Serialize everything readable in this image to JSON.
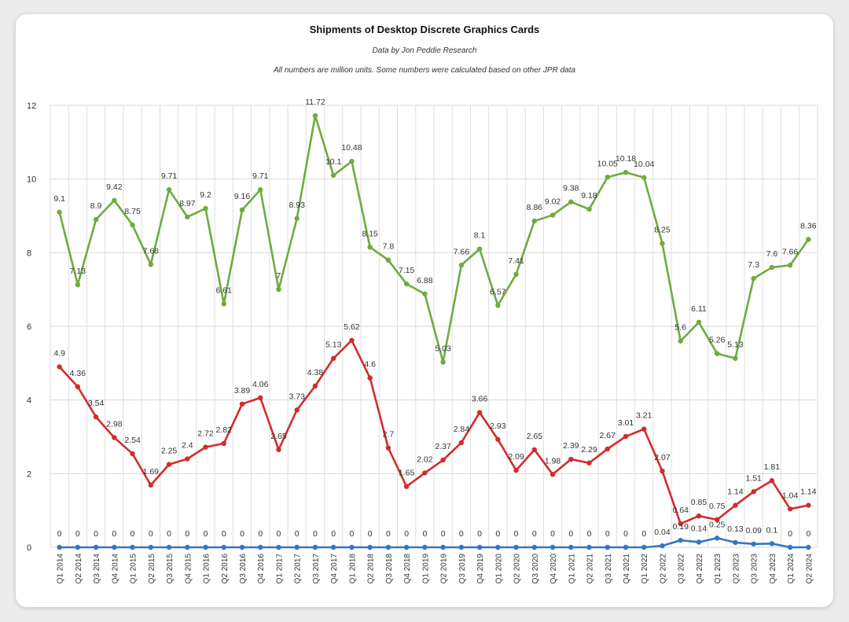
{
  "chart_data": {
    "type": "line",
    "title": "Shipments of Desktop Discrete Graphics Cards",
    "subtitle_1": "Data by Jon Peddie Research",
    "subtitle_2": "All numbers are million units. Some numbers were calculated based on other JPR data",
    "ylim": [
      0,
      12
    ],
    "yticks": [
      "0",
      "2",
      "4",
      "6",
      "8",
      "10",
      "12"
    ],
    "grid": true,
    "categories": [
      "Q1 2014",
      "Q2 2014",
      "Q3 2014",
      "Q4 2014",
      "Q1 2015",
      "Q2 2015",
      "Q3 2015",
      "Q4 2015",
      "Q1 2016",
      "Q2 2016",
      "Q3 2016",
      "Q4 2016",
      "Q1 2017",
      "Q2 2017",
      "Q3 2017",
      "Q4 2017",
      "Q1 2018",
      "Q2 2018",
      "Q3 2018",
      "Q4 2018",
      "Q1 2019",
      "Q2 2019",
      "Q3 2019",
      "Q4 2019",
      "Q1 2020",
      "Q2 2020",
      "Q3 2020",
      "Q4 2020",
      "Q1 2021",
      "Q2 2021",
      "Q3 2021",
      "Q4 2021",
      "Q1 2022",
      "Q2 2022",
      "Q3 2022",
      "Q4 2022",
      "Q1 2023",
      "Q2 2023",
      "Q3 2023",
      "Q4 2023",
      "Q1 2024",
      "Q2 2024"
    ],
    "series": [
      {
        "color": "#6fab3f",
        "values": [
          9.1,
          7.13,
          8.9,
          9.42,
          8.75,
          7.68,
          9.71,
          8.97,
          9.2,
          6.61,
          9.16,
          9.71,
          7,
          8.93,
          11.72,
          10.1,
          10.48,
          8.15,
          7.8,
          7.15,
          6.88,
          5.03,
          7.66,
          8.1,
          6.57,
          7.41,
          8.86,
          9.02,
          9.38,
          9.18,
          10.05,
          10.18,
          10.04,
          8.25,
          5.6,
          6.11,
          5.26,
          5.13,
          7.3,
          7.6,
          7.66,
          8.36
        ]
      },
      {
        "color": "#d12d2a",
        "values": [
          4.9,
          4.36,
          3.54,
          2.98,
          2.54,
          1.69,
          2.25,
          2.4,
          2.72,
          2.82,
          3.89,
          4.06,
          2.65,
          3.73,
          4.38,
          5.13,
          5.62,
          4.6,
          2.7,
          1.65,
          2.02,
          2.37,
          2.84,
          3.66,
          2.93,
          2.09,
          2.65,
          1.98,
          2.39,
          2.29,
          2.67,
          3.01,
          3.21,
          2.07,
          0.64,
          0.85,
          0.75,
          1.14,
          1.51,
          1.81,
          1.04,
          1.14
        ]
      },
      {
        "color": "#3376c4",
        "values": [
          0,
          0,
          0,
          0,
          0,
          0,
          0,
          0,
          0,
          0,
          0,
          0,
          0,
          0,
          0,
          0,
          0,
          0,
          0,
          0,
          0,
          0,
          0,
          0,
          0,
          0,
          0,
          0,
          0,
          0,
          0,
          0,
          0,
          0.04,
          0.19,
          0.14,
          0.25,
          0.13,
          0.09,
          0.1,
          0,
          0
        ]
      }
    ]
  }
}
